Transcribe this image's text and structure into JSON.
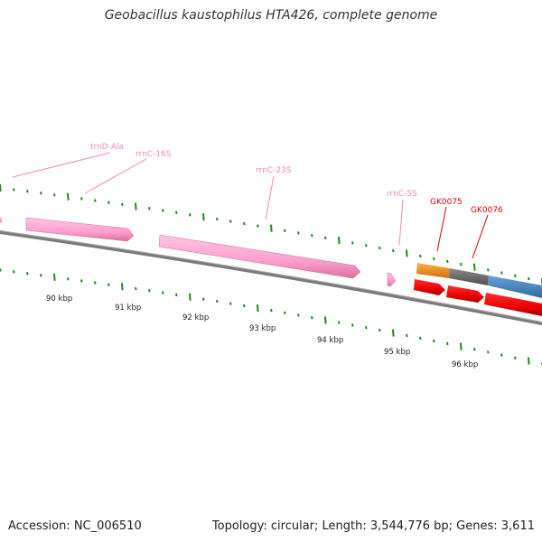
{
  "title": "Geobacillus kaustophilus HTA426, complete genome",
  "footer": {
    "accession": "Accession: NC_006510",
    "summary": "Topology: circular; Length: 3,544,776 bp; Genes: 3,611"
  },
  "kbp_labels": [
    "90 kbp",
    "91 kbp",
    "92 kbp",
    "93 kbp",
    "94 kbp",
    "95 kbp",
    "96 kbp"
  ],
  "features": [
    {
      "name": "trnD-Ala",
      "type": "tRNA",
      "color": "#f088c0"
    },
    {
      "name": "rrnC-16S",
      "type": "rRNA",
      "color": "#f088c0"
    },
    {
      "name": "rrnC-23S",
      "type": "rRNA",
      "color": "#f088c0"
    },
    {
      "name": "rrnC-5S",
      "type": "rRNA",
      "color": "#f088c0"
    },
    {
      "name": "GK0075",
      "type": "gene",
      "color": "#dd0000"
    },
    {
      "name": "GK0076",
      "type": "gene",
      "color": "#dd0000"
    }
  ],
  "colors": {
    "rna": "#ffa5d0",
    "gene_cds": "#ff0000",
    "orange_block": "#f5901e",
    "gray_block": "#707070",
    "blue_block": "#4a86c0",
    "backbone": "#7a7a7a",
    "tick": "#1f8a1f"
  }
}
